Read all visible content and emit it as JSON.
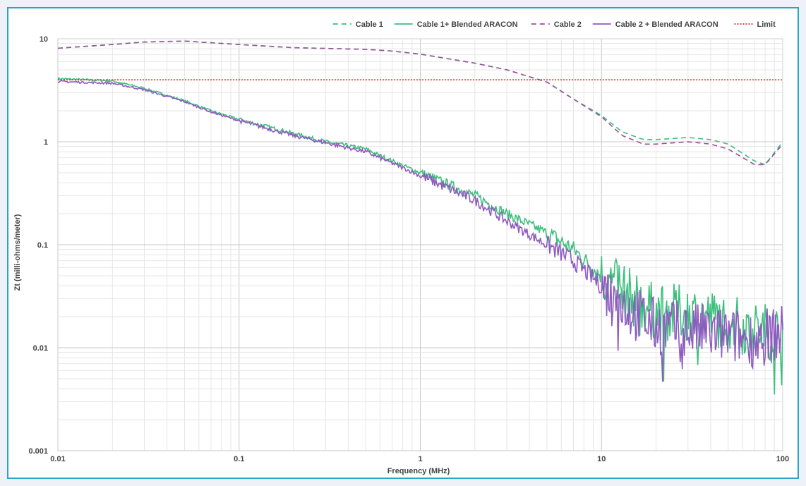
{
  "chart_data": {
    "type": "line",
    "title": "",
    "xlabel": "Frequency (MHz)",
    "ylabel": "Zt (milli-ohms/meter)",
    "x_scale": "log",
    "y_scale": "log",
    "xlim": [
      0.01,
      100
    ],
    "ylim": [
      0.001,
      10
    ],
    "x_tick_labels": [
      "0.01",
      "0.1",
      "1",
      "10",
      "100"
    ],
    "y_tick_labels": [
      "0.001",
      "0.01",
      "0.1",
      "1",
      "10"
    ],
    "grid": true,
    "legend_position": "top-right",
    "series": [
      {
        "name": "Cable 1",
        "color": "#3dbf7e",
        "dash": "dashed",
        "x": [
          0.01,
          0.02,
          0.03,
          0.05,
          0.1,
          0.2,
          0.5,
          0.7,
          1,
          2,
          3,
          5,
          7,
          10,
          13,
          17,
          20,
          30,
          40,
          50,
          70,
          80,
          100
        ],
        "y": [
          8.1,
          8.8,
          9.3,
          9.5,
          8.8,
          8.2,
          7.9,
          7.6,
          7.1,
          5.8,
          5.0,
          3.8,
          2.6,
          1.8,
          1.25,
          1.05,
          1.05,
          1.1,
          1.05,
          0.95,
          0.65,
          0.6,
          1.0
        ]
      },
      {
        "name": "Cable 1+ Blended ARACON",
        "color": "#3dbf7e",
        "dash": "solid",
        "x": [
          0.01,
          0.02,
          0.03,
          0.05,
          0.07,
          0.1,
          0.2,
          0.3,
          0.5,
          0.7,
          1,
          2,
          3,
          5,
          7,
          10,
          15,
          20,
          30,
          50,
          70,
          100
        ],
        "y": [
          4.1,
          3.9,
          3.3,
          2.5,
          2.0,
          1.65,
          1.2,
          1.0,
          0.85,
          0.65,
          0.5,
          0.3,
          0.2,
          0.13,
          0.09,
          0.05,
          0.03,
          0.022,
          0.022,
          0.018,
          0.015,
          0.014
        ]
      },
      {
        "name": "Cable 2",
        "color": "#9b4f9d",
        "dash": "dashed",
        "x": [
          0.01,
          0.02,
          0.03,
          0.05,
          0.1,
          0.2,
          0.5,
          0.7,
          1,
          2,
          3,
          5,
          7,
          10,
          13,
          17,
          20,
          30,
          40,
          50,
          70,
          80,
          100
        ],
        "y": [
          8.1,
          8.8,
          9.3,
          9.5,
          8.8,
          8.2,
          7.9,
          7.6,
          7.1,
          5.8,
          5.0,
          3.8,
          2.6,
          1.75,
          1.15,
          0.95,
          0.95,
          1.0,
          0.95,
          0.85,
          0.6,
          0.6,
          0.95
        ]
      },
      {
        "name": "Cable 2 + Blended ARACON",
        "color": "#8e5bbf",
        "dash": "solid",
        "x": [
          0.01,
          0.02,
          0.03,
          0.05,
          0.07,
          0.1,
          0.2,
          0.3,
          0.5,
          0.7,
          1,
          2,
          3,
          5,
          7,
          10,
          15,
          20,
          30,
          50,
          70,
          100
        ],
        "y": [
          3.85,
          3.7,
          3.2,
          2.45,
          1.95,
          1.6,
          1.15,
          0.98,
          0.8,
          0.62,
          0.47,
          0.27,
          0.17,
          0.1,
          0.07,
          0.04,
          0.022,
          0.016,
          0.015,
          0.013,
          0.012,
          0.014
        ]
      },
      {
        "name": "Limit",
        "color": "#e03030",
        "dash": "dotted",
        "x": [
          0.01,
          100
        ],
        "y": [
          4,
          4
        ]
      }
    ]
  }
}
